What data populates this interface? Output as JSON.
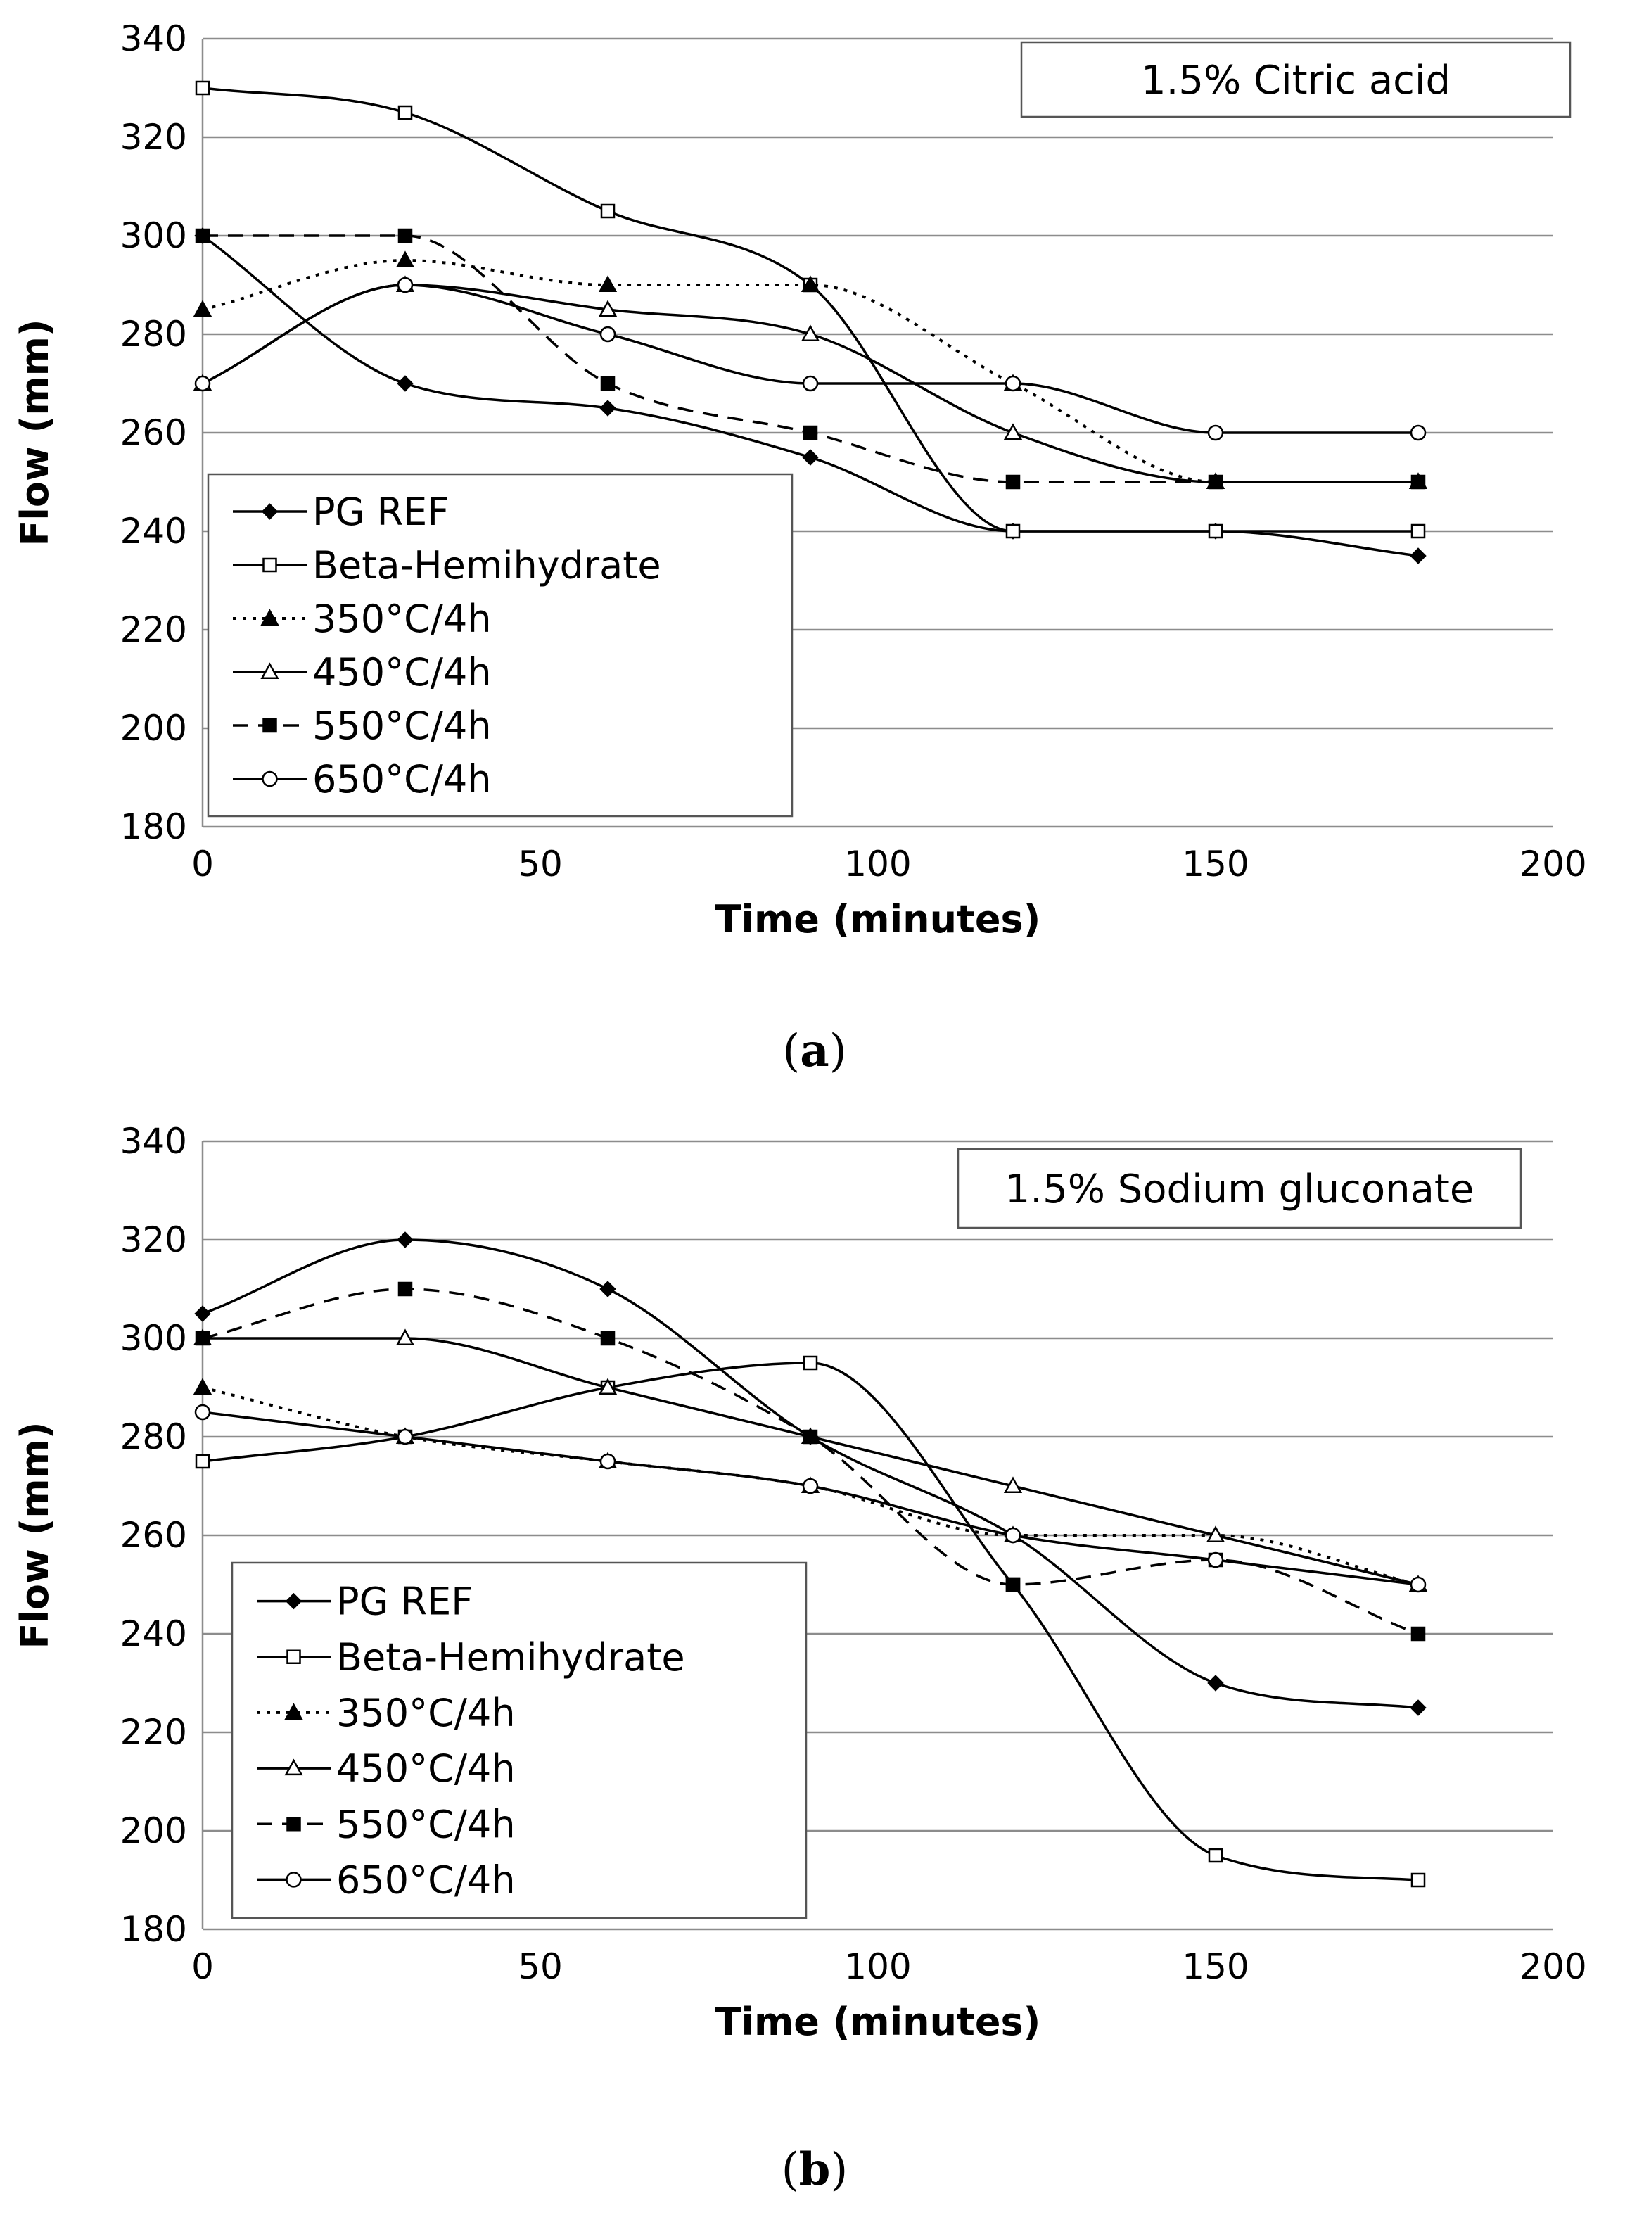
{
  "chart_data": [
    {
      "type": "line",
      "panel_label": "a",
      "annotation": "1.5% Citric acid",
      "xlabel": "Time (minutes)",
      "ylabel": "Flow (mm)",
      "xlim": [
        0,
        200
      ],
      "ylim": [
        180,
        340
      ],
      "xticks": [
        0,
        50,
        100,
        150,
        200
      ],
      "yticks": [
        180,
        200,
        220,
        240,
        260,
        280,
        300,
        320,
        340
      ],
      "grid": "horizontal",
      "legend_position": "lower-left",
      "x": [
        0,
        30,
        60,
        90,
        120,
        150,
        180
      ],
      "series": [
        {
          "name": "PG REF",
          "marker": "diamond-filled",
          "dash": "solid",
          "values": [
            300,
            270,
            265,
            255,
            240,
            240,
            235
          ]
        },
        {
          "name": "Beta-Hemihydrate",
          "marker": "square-open",
          "dash": "solid",
          "values": [
            330,
            325,
            305,
            290,
            240,
            240,
            240
          ]
        },
        {
          "name": "350°C/4h",
          "marker": "triangle-filled",
          "dash": "dotted",
          "values": [
            285,
            295,
            290,
            290,
            270,
            250,
            250
          ]
        },
        {
          "name": "450°C/4h",
          "marker": "triangle-open",
          "dash": "solid",
          "values": [
            270,
            290,
            285,
            280,
            260,
            250,
            250
          ]
        },
        {
          "name": "550°C/4h",
          "marker": "square-filled",
          "dash": "dashed",
          "values": [
            300,
            300,
            270,
            260,
            250,
            250,
            250
          ]
        },
        {
          "name": "650°C/4h",
          "marker": "circle-open",
          "dash": "solid",
          "values": [
            270,
            290,
            280,
            270,
            270,
            260,
            260
          ]
        }
      ]
    },
    {
      "type": "line",
      "panel_label": "b",
      "annotation": "1.5% Sodium gluconate",
      "xlabel": "Time (minutes)",
      "ylabel": "Flow (mm)",
      "xlim": [
        0,
        200
      ],
      "ylim": [
        180,
        340
      ],
      "xticks": [
        0,
        50,
        100,
        150,
        200
      ],
      "yticks": [
        180,
        200,
        220,
        240,
        260,
        280,
        300,
        320,
        340
      ],
      "grid": "horizontal",
      "legend_position": "lower-left",
      "x": [
        0,
        30,
        60,
        90,
        120,
        150,
        180
      ],
      "series": [
        {
          "name": "PG REF",
          "marker": "diamond-filled",
          "dash": "solid",
          "values": [
            305,
            320,
            310,
            280,
            260,
            230,
            225
          ]
        },
        {
          "name": "Beta-Hemihydrate",
          "marker": "square-open",
          "dash": "solid",
          "values": [
            275,
            280,
            290,
            295,
            250,
            195,
            190
          ]
        },
        {
          "name": "350°C/4h",
          "marker": "triangle-filled",
          "dash": "dotted",
          "values": [
            290,
            280,
            275,
            270,
            260,
            260,
            250
          ]
        },
        {
          "name": "450°C/4h",
          "marker": "triangle-open",
          "dash": "solid",
          "values": [
            300,
            300,
            290,
            280,
            270,
            260,
            250
          ]
        },
        {
          "name": "550°C/4h",
          "marker": "square-filled",
          "dash": "dashed",
          "values": [
            300,
            310,
            300,
            280,
            250,
            255,
            240
          ]
        },
        {
          "name": "650°C/4h",
          "marker": "circle-open",
          "dash": "solid",
          "values": [
            285,
            280,
            275,
            270,
            260,
            255,
            250
          ]
        }
      ]
    }
  ]
}
